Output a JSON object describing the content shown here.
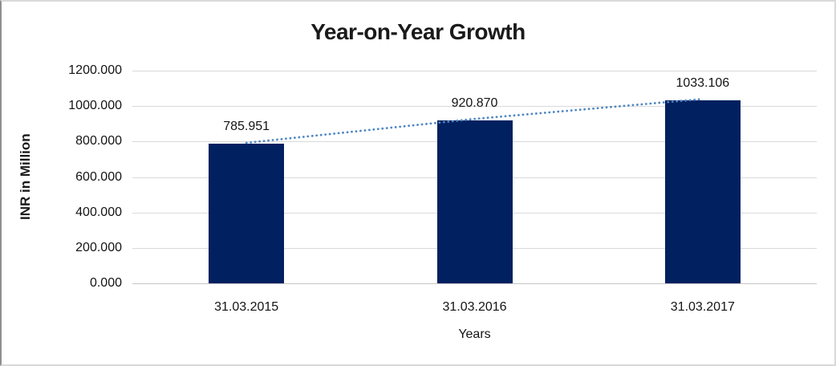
{
  "chart_data": {
    "type": "bar",
    "title": "Year-on-Year Growth",
    "xlabel": "Years",
    "ylabel": "INR in Million",
    "categories": [
      "31.03.2015",
      "31.03.2016",
      "31.03.2017"
    ],
    "values": [
      785.951,
      920.87,
      1033.106
    ],
    "value_label_decimals": 3,
    "yticks": [
      0,
      200,
      400,
      600,
      800,
      1000,
      1200
    ],
    "ytick_labels": [
      "0.000",
      "200.000",
      "400.000",
      "600.000",
      "800.000",
      "1000.000",
      "1200.000"
    ],
    "ylim": [
      0,
      1200
    ],
    "grid": "horizontal",
    "legend_position": "none",
    "trendline": {
      "style": "dotted",
      "through": "bar-tops"
    },
    "colors": {
      "bar": "#002060",
      "trendline": "#4e86c4",
      "gridline": "#d9d9d9",
      "text": "#141414",
      "background": "#ffffff",
      "border": "#d9d9d9"
    }
  }
}
